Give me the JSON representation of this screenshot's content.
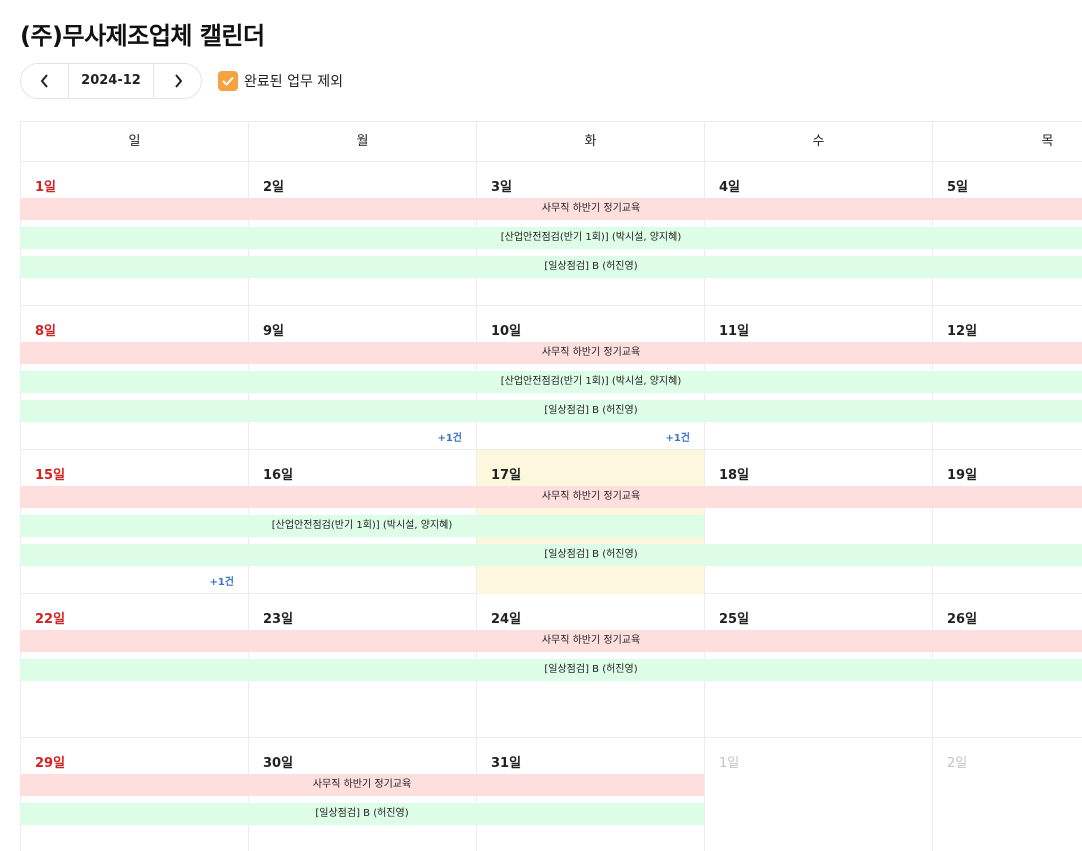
{
  "title": "(주)무사제조업체 캘린더",
  "toolbar": {
    "month": "2024-12",
    "exclude_completed_label": "완료된 업무 제외",
    "exclude_completed_checked": true
  },
  "colors": {
    "sunday": "#d32222",
    "today": "#fdf8dd",
    "event_red": "#ffdede",
    "event_green": "#ddfde7",
    "more_link": "#3a73c8",
    "checkbox": "#f5a340"
  },
  "weekdays": [
    "일",
    "월",
    "화",
    "수",
    "목"
  ],
  "events": {
    "office_training": "사무직 하반기 정기교육",
    "safety_check": "[산업안전점검(반기 1회)] (박시설, 양지혜)",
    "daily_check": "[일상점검] B (허진영)"
  },
  "weeks": [
    {
      "days": [
        {
          "label": "1일",
          "kind": "sunday"
        },
        {
          "label": "2일",
          "kind": "normal"
        },
        {
          "label": "3일",
          "kind": "normal"
        },
        {
          "label": "4일",
          "kind": "normal"
        },
        {
          "label": "5일",
          "kind": "normal"
        }
      ]
    },
    {
      "days": [
        {
          "label": "8일",
          "kind": "sunday"
        },
        {
          "label": "9일",
          "kind": "normal",
          "more": "+1건"
        },
        {
          "label": "10일",
          "kind": "normal",
          "more": "+1건"
        },
        {
          "label": "11일",
          "kind": "normal"
        },
        {
          "label": "12일",
          "kind": "normal"
        }
      ]
    },
    {
      "days": [
        {
          "label": "15일",
          "kind": "sunday",
          "more": "+1건"
        },
        {
          "label": "16일",
          "kind": "normal"
        },
        {
          "label": "17일",
          "kind": "today"
        },
        {
          "label": "18일",
          "kind": "normal"
        },
        {
          "label": "19일",
          "kind": "normal"
        }
      ]
    },
    {
      "days": [
        {
          "label": "22일",
          "kind": "sunday"
        },
        {
          "label": "23일",
          "kind": "normal"
        },
        {
          "label": "24일",
          "kind": "normal"
        },
        {
          "label": "25일",
          "kind": "normal"
        },
        {
          "label": "26일",
          "kind": "normal"
        }
      ]
    },
    {
      "days": [
        {
          "label": "29일",
          "kind": "sunday"
        },
        {
          "label": "30일",
          "kind": "normal"
        },
        {
          "label": "31일",
          "kind": "normal"
        },
        {
          "label": "1일",
          "kind": "other"
        },
        {
          "label": "2일",
          "kind": "other"
        }
      ]
    }
  ]
}
